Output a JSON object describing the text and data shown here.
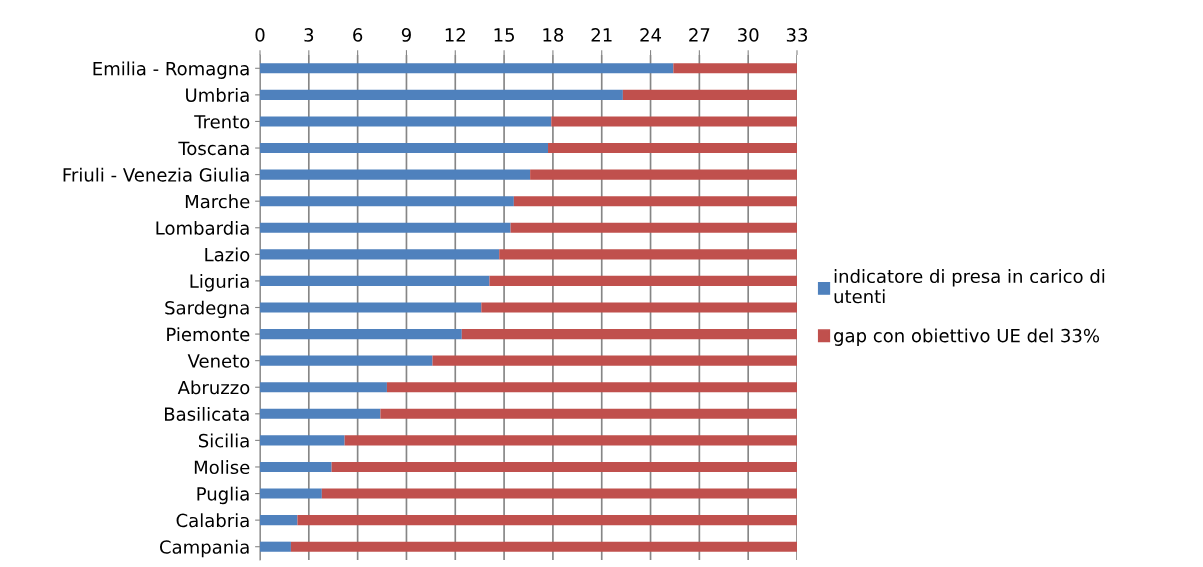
{
  "chart_data": {
    "type": "bar",
    "orientation": "horizontal",
    "stacked": true,
    "categories": [
      "Emilia - Romagna",
      "Umbria",
      "Trento",
      "Toscana",
      "Friuli - Venezia Giulia",
      "Marche",
      "Lombardia",
      "Lazio",
      "Liguria",
      "Sardegna",
      "Piemonte",
      "Veneto",
      "Abruzzo",
      "Basilicata",
      "Sicilia",
      "Molise",
      "Puglia",
      "Calabria",
      "Campania"
    ],
    "series": [
      {
        "name": "indicatore di presa in carico di utenti",
        "color": "#4f81bd",
        "values": [
          25.4,
          22.3,
          17.9,
          17.7,
          16.6,
          15.6,
          15.4,
          14.7,
          14.1,
          13.6,
          12.4,
          10.6,
          7.8,
          7.4,
          5.2,
          4.4,
          3.8,
          2.3,
          1.9
        ]
      },
      {
        "name": "gap con obiettivo UE del 33%",
        "color": "#c0504d",
        "values": [
          7.6,
          10.7,
          15.1,
          15.3,
          16.4,
          17.4,
          17.6,
          18.3,
          18.9,
          19.4,
          20.6,
          22.4,
          25.2,
          25.6,
          27.8,
          28.6,
          29.2,
          30.7,
          31.1
        ]
      }
    ],
    "xlim": [
      0,
      33
    ],
    "xticks": [
      0,
      3,
      6,
      9,
      12,
      15,
      18,
      21,
      24,
      27,
      30,
      33
    ],
    "grid": "x",
    "legend": "right"
  }
}
